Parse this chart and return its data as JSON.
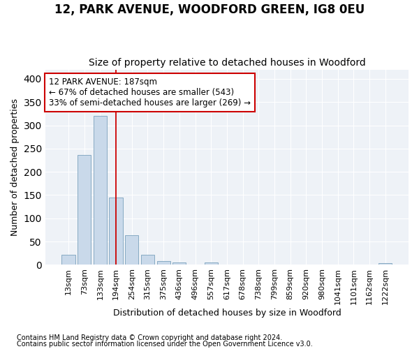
{
  "title": "12, PARK AVENUE, WOODFORD GREEN, IG8 0EU",
  "subtitle": "Size of property relative to detached houses in Woodford",
  "xlabel": "Distribution of detached houses by size in Woodford",
  "ylabel": "Number of detached properties",
  "bar_color": "#c9d9ea",
  "bar_edge_color": "#7aa0bc",
  "background_color": "#eef2f7",
  "grid_color": "#ffffff",
  "annotation_line_color": "#cc0000",
  "annotation_box_color": "#cc0000",
  "annotation_line1": "12 PARK AVENUE: 187sqm",
  "annotation_line2": "← 67% of detached houses are smaller (543)",
  "annotation_line3": "33% of semi-detached houses are larger (269) →",
  "footnote1": "Contains HM Land Registry data © Crown copyright and database right 2024.",
  "footnote2": "Contains public sector information licensed under the Open Government Licence v3.0.",
  "bin_labels": [
    "13sqm",
    "73sqm",
    "133sqm",
    "194sqm",
    "254sqm",
    "315sqm",
    "375sqm",
    "436sqm",
    "496sqm",
    "557sqm",
    "617sqm",
    "678sqm",
    "738sqm",
    "799sqm",
    "859sqm",
    "920sqm",
    "980sqm",
    "1041sqm",
    "1101sqm",
    "1162sqm",
    "1222sqm"
  ],
  "bar_heights": [
    22,
    236,
    320,
    145,
    63,
    21,
    8,
    5,
    0,
    5,
    0,
    0,
    0,
    0,
    0,
    0,
    0,
    0,
    0,
    0,
    3
  ],
  "ylim": [
    0,
    420
  ],
  "yticks": [
    0,
    50,
    100,
    150,
    200,
    250,
    300,
    350,
    400
  ],
  "red_line_x": 3,
  "title_fontsize": 12,
  "subtitle_fontsize": 10,
  "ylabel_fontsize": 9,
  "xlabel_fontsize": 9,
  "tick_fontsize": 8,
  "footnote_fontsize": 7
}
